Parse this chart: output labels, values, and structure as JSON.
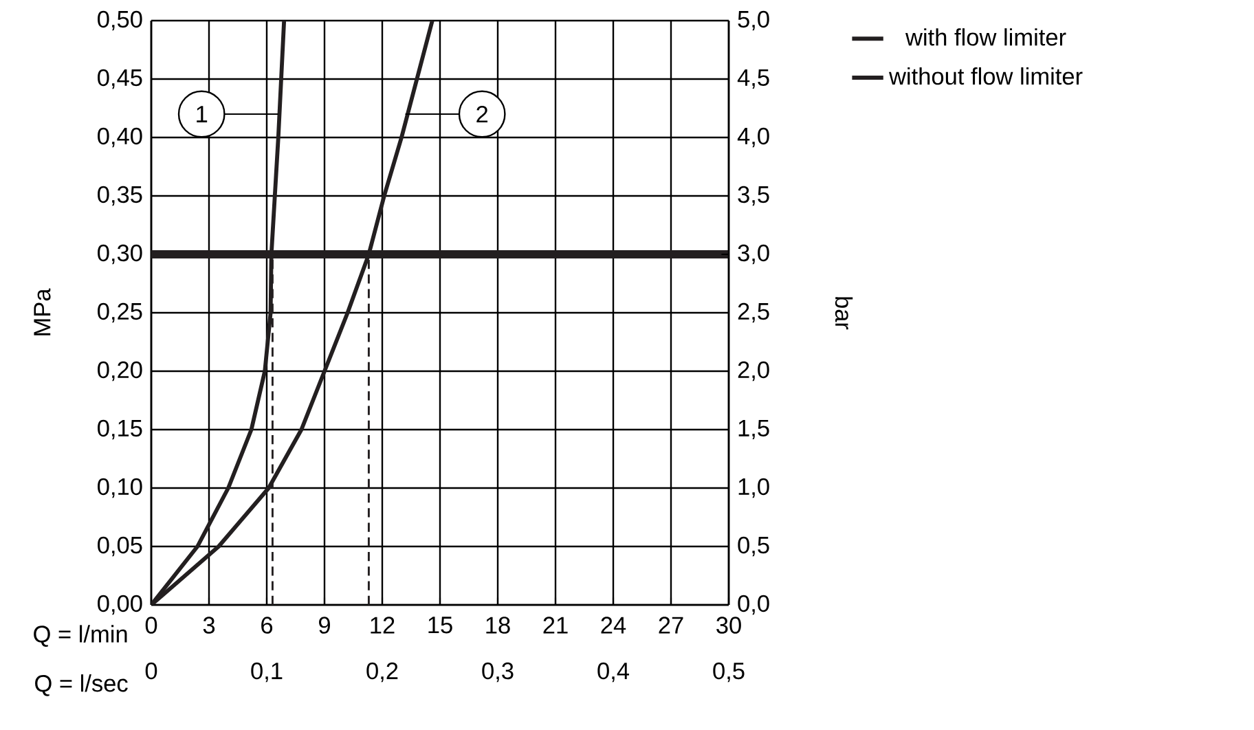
{
  "chart_data": {
    "type": "line",
    "xlabel": "Q = l/min",
    "x2label": "Q = l/sec",
    "ylabel": "MPa",
    "y2label": "bar",
    "xlim": [
      0,
      30
    ],
    "xticks": [
      0,
      3,
      6,
      9,
      12,
      15,
      18,
      21,
      24,
      27,
      30
    ],
    "x2lim": [
      0,
      0.5
    ],
    "x2ticks": [
      0,
      {
        "value": 0.1,
        "label": "0,1"
      },
      {
        "value": 0.2,
        "label": "0,2"
      },
      {
        "value": 0.3,
        "label": "0,3"
      },
      {
        "value": 0.4,
        "label": "0,4"
      },
      {
        "value": 0.5,
        "label": "0,5"
      }
    ],
    "ylim": [
      0,
      0.5
    ],
    "yticks": [
      {
        "value": 0,
        "label": "0,00"
      },
      {
        "value": 0.05,
        "label": "0,05"
      },
      {
        "value": 0.1,
        "label": "0,10"
      },
      {
        "value": 0.15,
        "label": "0,15"
      },
      {
        "value": 0.2,
        "label": "0,20"
      },
      {
        "value": 0.25,
        "label": "0,25"
      },
      {
        "value": 0.3,
        "label": "0,30"
      },
      {
        "value": 0.35,
        "label": "0,35"
      },
      {
        "value": 0.4,
        "label": "0,40"
      },
      {
        "value": 0.45,
        "label": "0,45"
      },
      {
        "value": 0.5,
        "label": "0,50"
      }
    ],
    "y2lim": [
      0,
      5
    ],
    "y2ticks": [
      {
        "value": 0,
        "label": "0,0"
      },
      {
        "value": 0.5,
        "label": "0,5"
      },
      {
        "value": 1,
        "label": "1,0"
      },
      {
        "value": 1.5,
        "label": "1,5"
      },
      {
        "value": 2,
        "label": "2,0"
      },
      {
        "value": 2.5,
        "label": "2,5"
      },
      {
        "value": 3,
        "label": "3,0"
      },
      {
        "value": 3.5,
        "label": "3,5"
      },
      {
        "value": 4,
        "label": "4,0"
      },
      {
        "value": 4.5,
        "label": "4,5"
      },
      {
        "value": 5,
        "label": "5,0"
      }
    ],
    "grid": true,
    "legend": "top right",
    "marker": "none",
    "series": [
      {
        "name": "with flow limiter",
        "color": "#231f20",
        "x": [
          0,
          2.4,
          4.0,
          5.2,
          5.9,
          6.2,
          6.24,
          6.6,
          6.9
        ],
        "values": [
          0,
          0.05,
          0.1,
          0.15,
          0.2,
          0.25,
          0.3,
          0.4,
          0.5
        ]
      },
      {
        "name": "without flow limiter",
        "color": "#231f20",
        "x": [
          0,
          3.5,
          6.1,
          7.8,
          9.0,
          10.2,
          11.3,
          12.1,
          13.0,
          13.8,
          14.6
        ],
        "values": [
          0,
          0.05,
          0.1,
          0.15,
          0.2,
          0.25,
          0.3,
          0.35,
          0.4,
          0.45,
          0.5
        ]
      },
      {
        "color": "#231f20",
        "line_style": "dashed",
        "x": [
          6.3,
          6.3
        ],
        "values": [
          0,
          0.3
        ]
      },
      {
        "color": "#231f20",
        "line_style": "dashed",
        "x": [
          11.3,
          11.3
        ],
        "values": [
          0,
          0.3
        ]
      }
    ],
    "ref_lines": [
      {
        "axis": "y",
        "value": 0.3,
        "color": "#231f20"
      }
    ],
    "annotations": [
      {
        "text": "1",
        "x": 6.6,
        "y": 0.42
      },
      {
        "text": "2",
        "x": 13.2,
        "y": 0.42
      }
    ]
  }
}
